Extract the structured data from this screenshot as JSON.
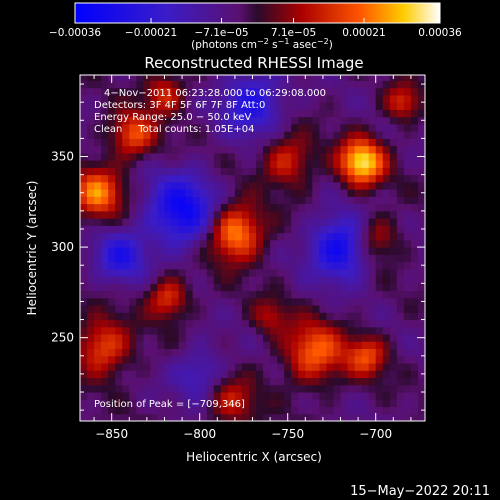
{
  "chart_data": {
    "type": "heatmap",
    "title": "Reconstructed RHESSI Image",
    "xlabel": "Heliocentric X (arcsec)",
    "ylabel": "Heliocentric Y (arcsec)",
    "xlim": [
      -868,
      -672
    ],
    "ylim": [
      204,
      395
    ],
    "x_ticks": [
      -850,
      -800,
      -750,
      -700
    ],
    "y_ticks": [
      250,
      300,
      350
    ],
    "x_tick_labels": [
      "−850",
      "−800",
      "−750",
      "−700"
    ],
    "y_tick_labels": [
      "250",
      "300",
      "350"
    ],
    "colorbar": {
      "range": [
        -0.00036,
        0.00036
      ],
      "ticks": [
        -0.00036,
        -0.00021,
        -7.1e-05,
        7.1e-05,
        0.00021,
        0.00036
      ],
      "tick_labels": [
        "−0.00036",
        "−0.00021",
        "−7.1e−05",
        "7.1e−05",
        "0.00021",
        "0.00036"
      ],
      "unit_parts": [
        "(photons cm",
        "−2",
        " s",
        "−1",
        " asec",
        "−2",
        ")"
      ]
    },
    "annotations": [
      "4−Nov−2011 06:23:28.000 to 06:29:08.000",
      "Detectors: 3F 4F 5F 6F 7F 8F Att:0",
      "Energy Range: 25.0 − 50.0 keV",
      "Clean     Total counts: 1.05E+04"
    ],
    "peak_label": "Position of Peak = [−709,346]",
    "peak": [
      -709,
      346
    ],
    "sources": [
      {
        "x": -708,
        "y": 347,
        "amp": 0.00036,
        "sigma": 9
      },
      {
        "x": -780,
        "y": 308,
        "amp": 0.0003,
        "sigma": 11
      },
      {
        "x": -858,
        "y": 330,
        "amp": 0.00026,
        "sigma": 10
      },
      {
        "x": -838,
        "y": 362,
        "amp": 0.00022,
        "sigma": 9
      },
      {
        "x": -750,
        "y": 348,
        "amp": 0.00018,
        "sigma": 10
      },
      {
        "x": -735,
        "y": 242,
        "amp": 0.00024,
        "sigma": 12
      },
      {
        "x": -705,
        "y": 240,
        "amp": 0.0002,
        "sigma": 8
      },
      {
        "x": -818,
        "y": 272,
        "amp": 0.0002,
        "sigma": 8
      },
      {
        "x": -855,
        "y": 245,
        "amp": 0.00022,
        "sigma": 11
      },
      {
        "x": -700,
        "y": 305,
        "amp": 0.00016,
        "sigma": 9
      },
      {
        "x": -820,
        "y": 385,
        "amp": 0.00018,
        "sigma": 8
      },
      {
        "x": -685,
        "y": 380,
        "amp": 0.00018,
        "sigma": 7
      },
      {
        "x": -782,
        "y": 215,
        "amp": 0.00015,
        "sigma": 10
      },
      {
        "x": -760,
        "y": 262,
        "amp": 0.00012,
        "sigma": 7
      },
      {
        "x": -810,
        "y": 320,
        "amp": -0.00028,
        "sigma": 14
      },
      {
        "x": -720,
        "y": 300,
        "amp": -0.00028,
        "sigma": 12
      },
      {
        "x": -845,
        "y": 295,
        "amp": -0.0002,
        "sigma": 10
      },
      {
        "x": -770,
        "y": 380,
        "amp": -0.00022,
        "sigma": 12
      },
      {
        "x": -800,
        "y": 230,
        "amp": -0.00014,
        "sigma": 10
      }
    ]
  },
  "timestamp": "15−May−2022 20:11"
}
